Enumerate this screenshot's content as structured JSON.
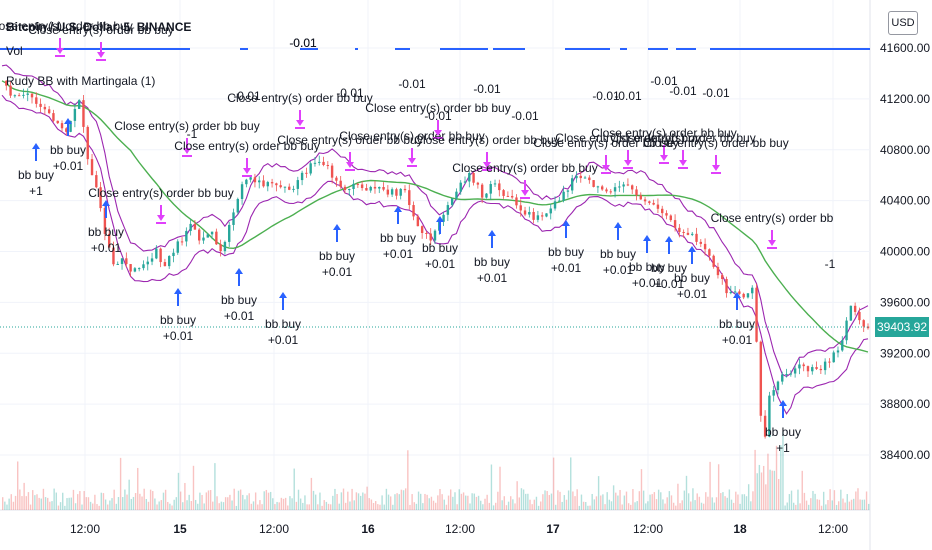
{
  "header": {
    "symbol_title": "Bitcoin / U.S. Dollar, 5, BINANCE",
    "volume_label": "Vol",
    "strategy_label": "Rudy BB with Martingala (1)",
    "currency": "USD",
    "last_price": "39403.92"
  },
  "colors": {
    "up": "#26a69a",
    "down": "#ef5350",
    "band": "#9c27b0",
    "ma": "#4caf50",
    "entry_arrow": "#2962ff",
    "exit_arrow": "#e040fb",
    "volume_line": "#2962ff"
  },
  "chart_data": {
    "type": "candlestick",
    "y_axis": {
      "ticks": [
        "41600.00",
        "41200.00",
        "40800.00",
        "40400.00",
        "40000.00",
        "39600.00",
        "39200.00",
        "38800.00",
        "38400.00"
      ],
      "range": [
        38100,
        41800
      ]
    },
    "x_axis": {
      "ticks": [
        "12:00",
        "15",
        "12:00",
        "16",
        "12:00",
        "17",
        "12:00",
        "18",
        "12:00"
      ]
    },
    "price_path": [
      [
        0,
        41330
      ],
      [
        3,
        41200
      ],
      [
        6,
        41250
      ],
      [
        9,
        41150
      ],
      [
        12,
        41050
      ],
      [
        15,
        40950
      ],
      [
        18,
        41200
      ],
      [
        20,
        40700
      ],
      [
        22,
        40500
      ],
      [
        24,
        40150
      ],
      [
        26,
        39900
      ],
      [
        28,
        39950
      ],
      [
        30,
        39850
      ],
      [
        33,
        39900
      ],
      [
        36,
        40000
      ],
      [
        38,
        39880
      ],
      [
        41,
        40050
      ],
      [
        44,
        40200
      ],
      [
        46,
        40100
      ],
      [
        49,
        40150
      ],
      [
        51,
        40000
      ],
      [
        53,
        40200
      ],
      [
        56,
        40550
      ],
      [
        58,
        40600
      ],
      [
        61,
        40500
      ],
      [
        64,
        40550
      ],
      [
        67,
        40480
      ],
      [
        70,
        40600
      ],
      [
        73,
        40720
      ],
      [
        76,
        40650
      ],
      [
        79,
        40500
      ],
      [
        82,
        40520
      ],
      [
        85,
        40480
      ],
      [
        88,
        40510
      ],
      [
        91,
        40460
      ],
      [
        94,
        40480
      ],
      [
        97,
        40200
      ],
      [
        100,
        40100
      ],
      [
        103,
        40300
      ],
      [
        106,
        40500
      ],
      [
        109,
        40600
      ],
      [
        112,
        40450
      ],
      [
        115,
        40550
      ],
      [
        118,
        40420
      ],
      [
        121,
        40350
      ],
      [
        124,
        40250
      ],
      [
        127,
        40300
      ],
      [
        130,
        40400
      ],
      [
        133,
        40550
      ],
      [
        136,
        40600
      ],
      [
        139,
        40500
      ],
      [
        142,
        40450
      ],
      [
        145,
        40550
      ],
      [
        148,
        40420
      ],
      [
        151,
        40380
      ],
      [
        154,
        40300
      ],
      [
        157,
        40200
      ],
      [
        160,
        40150
      ],
      [
        163,
        40050
      ],
      [
        166,
        39900
      ],
      [
        169,
        39700
      ],
      [
        172,
        39650
      ],
      [
        175,
        39700
      ],
      [
        176,
        39300
      ],
      [
        177,
        38700
      ],
      [
        178,
        38550
      ],
      [
        179,
        38850
      ],
      [
        181,
        39000
      ],
      [
        184,
        39050
      ],
      [
        187,
        39100
      ],
      [
        190,
        39050
      ],
      [
        193,
        39150
      ],
      [
        196,
        39300
      ],
      [
        198,
        39600
      ],
      [
        200,
        39450
      ],
      [
        202,
        39400
      ]
    ],
    "annotations": {
      "entries": [
        {
          "label": "bb buy",
          "qty": "+0.01"
        },
        {
          "label": "bb buy",
          "qty": "+0.01"
        },
        {
          "label": "bb buy",
          "qty": "+0.01"
        },
        {
          "label": "bb buy",
          "qty": "+1"
        },
        {
          "label": "bb buy",
          "qty": "+0.01"
        },
        {
          "label": "bb buy",
          "qty": "+0.01"
        },
        {
          "label": "bb buy",
          "qty": "+0.01"
        },
        {
          "label": "bb buy",
          "qty": "+0.01"
        },
        {
          "label": "bb buy",
          "qty": "+0.01"
        },
        {
          "label": "bb buy",
          "qty": "+0.01"
        },
        {
          "label": "bb buy",
          "qty": "+0.01"
        },
        {
          "label": "bb buy",
          "qty": "+0.01"
        },
        {
          "label": "bb buy",
          "qty": "+0.01"
        },
        {
          "label": "bb buy",
          "qty": "+0.01"
        },
        {
          "label": "bb buy",
          "qty": "+0.01"
        },
        {
          "label": "bb buy",
          "qty": "+0.01"
        },
        {
          "label": "bb buy",
          "qty": "+1"
        }
      ],
      "exits": [
        {
          "label": "Close entry(s) order bb buy",
          "qty": ""
        },
        {
          "label": "Close entry(s) order bb buy",
          "qty": ""
        },
        {
          "label": "Close entry(s) order bb buy",
          "qty": "-0.01"
        },
        {
          "label": "Close entry(s) order bb buy",
          "qty": "-1"
        },
        {
          "label": "Close entry(s) order bb buy",
          "qty": "-0.01"
        },
        {
          "label": "Close entry(s) order bb buy",
          "qty": "-0.01"
        },
        {
          "label": "Close entry(s) order bb buy",
          "qty": "-0.01"
        },
        {
          "label": "Close entry(s) order bb buy",
          "qty": "-0.01"
        },
        {
          "label": "Close entry(s) order bb buy",
          "qty": "-0.01"
        },
        {
          "label": "Close entry(s) order bb buy",
          "qty": "-0.01"
        },
        {
          "label": "Close entry(s) order bb buy",
          "qty": "-0.01"
        },
        {
          "label": "Close entry(s) order bb buy",
          "qty": "-0.01"
        },
        {
          "label": "Close entry(s) order bb buy",
          "qty": "-0.01"
        },
        {
          "label": "Close entry(s) order bb buy",
          "qty": "-0.01"
        },
        {
          "label": "Close entry(s) order bb buy",
          "qty": "-0.01"
        },
        {
          "label": "Close entry(s) order bb buy",
          "qty": "-0.01"
        },
        {
          "label": "Close entry(s) order bb",
          "qty": "-1"
        }
      ]
    }
  }
}
